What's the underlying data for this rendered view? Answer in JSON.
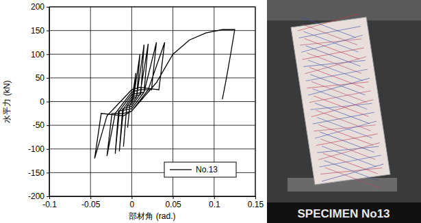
{
  "chart_data": {
    "type": "line",
    "x_label": "部材角 (rad.)",
    "y_label": "水平力 (kN)",
    "x": [
      0,
      0.005,
      0.002,
      -0.002,
      -0.005,
      -0.002,
      0.002,
      0.01,
      0.006,
      0,
      -0.006,
      -0.01,
      -0.006,
      0,
      0.006,
      0.015,
      0.011,
      0,
      -0.01,
      -0.015,
      -0.011,
      0,
      0.01,
      0.02,
      0.015,
      0,
      -0.015,
      -0.02,
      -0.016,
      0,
      0.015,
      0.03,
      0.024,
      0.01,
      0,
      -0.02,
      -0.03,
      -0.024,
      -0.01,
      0,
      0.02,
      0.04,
      0.033,
      0.01,
      0,
      -0.03,
      -0.045,
      -0.037,
      -0.01,
      0,
      0.03,
      0.05,
      0.07,
      0.09,
      0.11,
      0.125,
      0.12,
      0.115,
      0.11
    ],
    "series": [
      {
        "name": "No.13",
        "color": "#000000",
        "values": [
          0,
          60,
          5,
          -5,
          -55,
          -5,
          5,
          100,
          10,
          5,
          -10,
          -95,
          -10,
          -5,
          10,
          120,
          15,
          10,
          -15,
          -105,
          -15,
          -10,
          15,
          122,
          20,
          15,
          -20,
          -110,
          -20,
          -15,
          20,
          125,
          25,
          25,
          20,
          -25,
          -115,
          -25,
          -25,
          -20,
          25,
          125,
          25,
          30,
          25,
          -30,
          -120,
          -25,
          -30,
          -20,
          40,
          100,
          130,
          145,
          152,
          152,
          100,
          50,
          5
        ]
      }
    ],
    "xlim": [
      -0.1,
      0.15
    ],
    "xticks": [
      -0.1,
      -0.05,
      0,
      0.05,
      0.1,
      0.15
    ],
    "ylim": [
      -200,
      200
    ],
    "yticks": [
      -200,
      -150,
      -100,
      -50,
      0,
      50,
      100,
      150,
      200
    ],
    "grid": true,
    "legend": "lower right"
  },
  "photo": {
    "caption": "SPECIMEN No13"
  }
}
